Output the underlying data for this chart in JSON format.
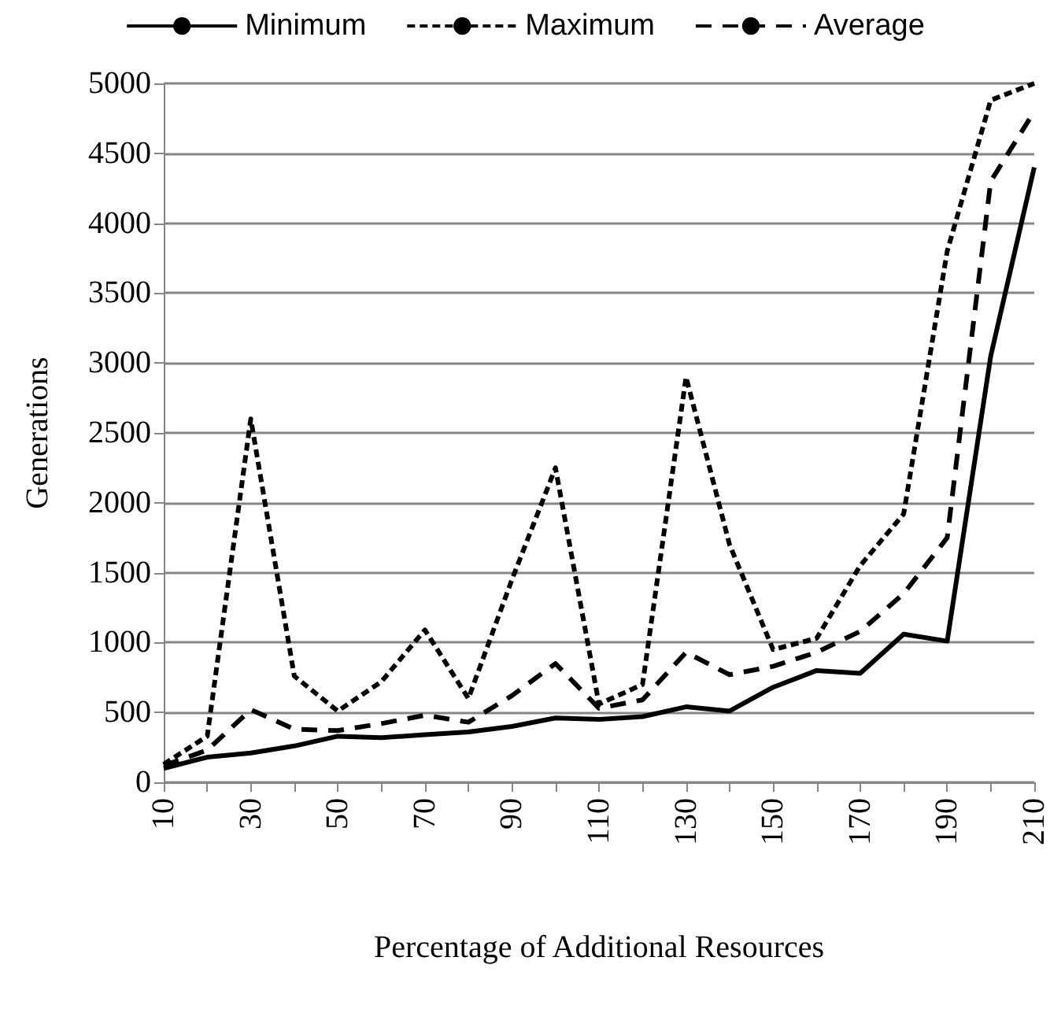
{
  "chart_data": {
    "type": "line",
    "xlabel": "Percentage of Additional Resources",
    "ylabel": "Generations",
    "categories": [
      "10",
      null,
      "30",
      null,
      "50",
      null,
      "70",
      null,
      "90",
      null,
      "110",
      null,
      "130",
      null,
      "150",
      null,
      "170",
      null,
      "190",
      null,
      "210"
    ],
    "series": [
      {
        "name": "Minimum",
        "color": "#000000",
        "line_style": "solid",
        "values": [
          100,
          180,
          210,
          260,
          330,
          320,
          340,
          360,
          400,
          460,
          450,
          470,
          540,
          510,
          680,
          800,
          780,
          1060,
          1010,
          3050,
          4400
        ]
      },
      {
        "name": "Maximum",
        "color": "#000000",
        "line_style": "dotted",
        "values": [
          130,
          330,
          2600,
          760,
          510,
          720,
          1090,
          600,
          1450,
          2250,
          560,
          700,
          2900,
          1700,
          950,
          1030,
          1550,
          1920,
          3800,
          4880,
          5000
        ]
      },
      {
        "name": "Average",
        "color": "#000000",
        "line_style": "dashed",
        "values": [
          120,
          230,
          520,
          380,
          370,
          420,
          480,
          430,
          620,
          850,
          530,
          590,
          930,
          770,
          830,
          930,
          1080,
          1350,
          1750,
          4300,
          4800
        ]
      }
    ],
    "ylim": [
      0,
      5000
    ],
    "yticks": [
      0,
      500,
      1000,
      1500,
      2000,
      2500,
      3000,
      3500,
      4000,
      4500,
      5000
    ],
    "grid": "y",
    "legend": "top",
    "marker": "none"
  }
}
